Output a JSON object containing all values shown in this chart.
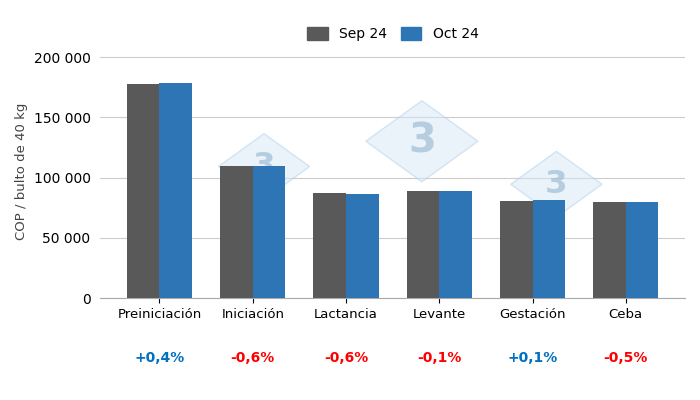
{
  "categories": [
    "Preiniciación",
    "Iniciación",
    "Lactancia",
    "Levante",
    "Gestación",
    "Ceba"
  ],
  "sep_values": [
    178000,
    110000,
    87000,
    89000,
    81000,
    80000
  ],
  "oct_values": [
    178700,
    109340,
    86478,
    88911,
    81081,
    79600
  ],
  "changes": [
    "+0,4%",
    "-0,6%",
    "-0,6%",
    "-0,1%",
    "+0,1%",
    "-0,5%"
  ],
  "change_colors": [
    "#0070C0",
    "#FF0000",
    "#FF0000",
    "#FF0000",
    "#0070C0",
    "#FF0000"
  ],
  "sep_color": "#595959",
  "oct_color": "#2E75B6",
  "ylabel": "COP / bulto de 40 kg",
  "ylim": [
    0,
    210000
  ],
  "yticks": [
    0,
    50000,
    100000,
    150000,
    200000
  ],
  "legend_sep": "Sep 24",
  "legend_oct": "Oct 24",
  "bar_width": 0.35,
  "bg_color": "#FFFFFF",
  "grid_color": "#CCCCCC"
}
